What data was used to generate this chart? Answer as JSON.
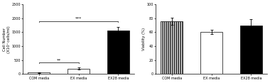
{
  "left": {
    "categories": [
      "COM media",
      "EX media",
      "EX28 media"
    ],
    "values": [
      50,
      200,
      1550
    ],
    "errors": [
      10,
      40,
      150
    ],
    "colors": [
      "white",
      "white",
      "black"
    ],
    "hatch": [
      "",
      "",
      ""
    ],
    "ylabel": "Cell Number\n(X10⁵ cells/ml)",
    "ylim": [
      0,
      2500
    ],
    "yticks": [
      0,
      500,
      1000,
      1500,
      2000,
      2500
    ],
    "sig_labels": [
      "**",
      "***"
    ],
    "edgecolor": "black"
  },
  "right": {
    "categories": [
      "COM media",
      "EX media",
      "EX28 media"
    ],
    "values": [
      76,
      60,
      70
    ],
    "errors": [
      5,
      3,
      9
    ],
    "colors": [
      "white",
      "white",
      "black"
    ],
    "hatch": [
      "||||||",
      "",
      ""
    ],
    "ylabel": "Viability (%)",
    "ylim": [
      0,
      100
    ],
    "yticks": [
      0,
      20,
      40,
      60,
      80,
      100
    ],
    "edgecolor": "black"
  }
}
